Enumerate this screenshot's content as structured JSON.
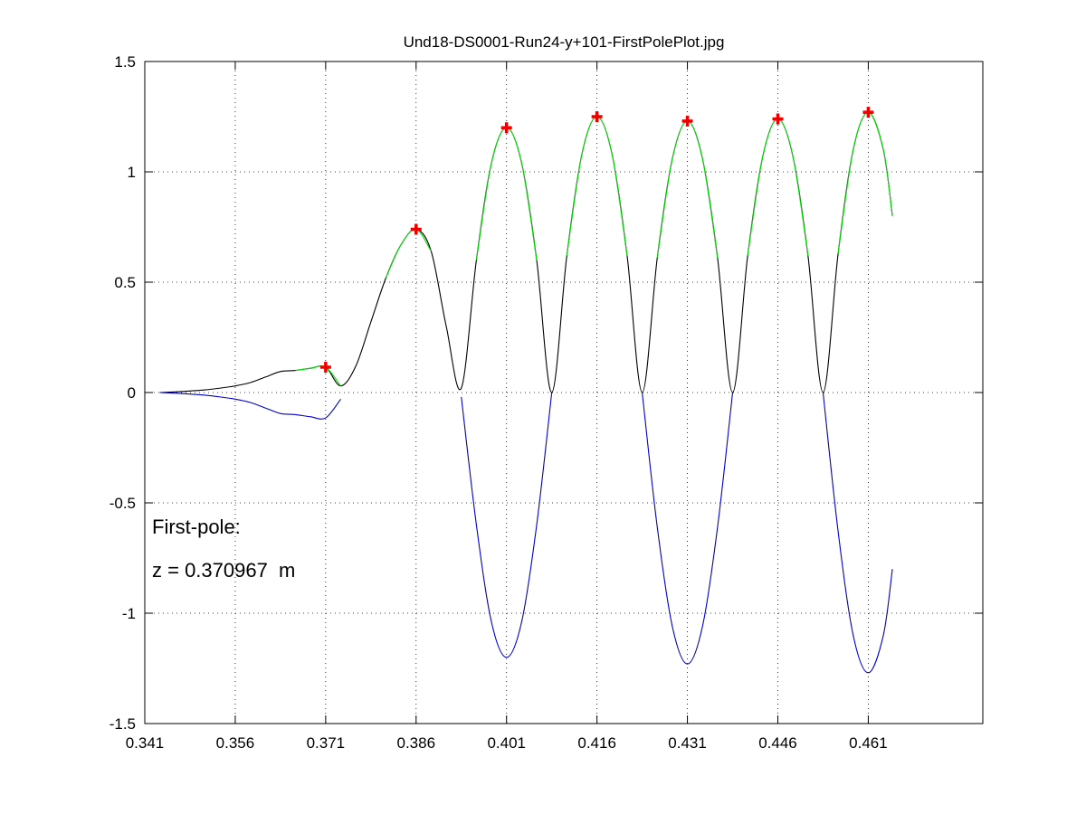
{
  "chart_data": {
    "type": "line",
    "title": "Und18-DS0001-Run24-y+101-FirstPolePlot.jpg",
    "x": [
      0.3435,
      0.346,
      0.3485,
      0.351,
      0.3535,
      0.356,
      0.3585,
      0.361,
      0.3635,
      0.366,
      0.3685,
      0.371,
      0.3735,
      0.376,
      0.3785,
      0.381,
      0.3835,
      0.386,
      0.3885,
      0.391,
      0.3935,
      0.396,
      0.3985,
      0.401,
      0.4035,
      0.406,
      0.4085,
      0.411,
      0.4135,
      0.416,
      0.4185,
      0.421,
      0.4235,
      0.426,
      0.4285,
      0.431,
      0.4335,
      0.436,
      0.4385,
      0.441,
      0.4435,
      0.446,
      0.4485,
      0.451,
      0.4535,
      0.456,
      0.4585,
      0.461,
      0.4635,
      0.465
    ],
    "series": [
      {
        "color": "#000000",
        "values": [
          0,
          0.003,
          0.007,
          0.012,
          0.02,
          0.03,
          0.045,
          0.07,
          0.095,
          0.1,
          0.11,
          0.115,
          0.03,
          0.12,
          0.32,
          0.52,
          0.67,
          0.74,
          0.64,
          0.3,
          0.02,
          0.6,
          1.04,
          1.2,
          1.04,
          0.6,
          0,
          0.62,
          1.08,
          1.25,
          1.08,
          0.62,
          0,
          0.61,
          1.06,
          1.23,
          1.06,
          0.61,
          0,
          0.62,
          1.07,
          1.24,
          1.07,
          0.62,
          0,
          0.63,
          1.1,
          1.27,
          1.1,
          0.8
        ]
      },
      {
        "color": "#00dd00",
        "values": [
          null,
          null,
          null,
          null,
          null,
          null,
          null,
          null,
          null,
          0.1,
          0.11,
          0.115,
          0.03,
          null,
          null,
          0.52,
          0.67,
          0.74,
          0.64,
          null,
          null,
          0.6,
          1.04,
          1.2,
          1.04,
          0.6,
          null,
          0.62,
          1.08,
          1.25,
          1.08,
          0.62,
          null,
          0.61,
          1.06,
          1.23,
          1.06,
          0.61,
          null,
          0.62,
          1.07,
          1.24,
          1.07,
          0.62,
          null,
          0.63,
          1.1,
          1.27,
          1.1,
          0.8
        ]
      },
      {
        "color": "#0000cc",
        "values": [
          0,
          -0.003,
          -0.007,
          -0.012,
          -0.02,
          -0.03,
          -0.045,
          -0.07,
          -0.095,
          -0.1,
          -0.11,
          -0.115,
          -0.03,
          null,
          null,
          null,
          null,
          null,
          null,
          null,
          -0.02,
          -0.6,
          -1.04,
          -1.2,
          -1.04,
          -0.6,
          0,
          null,
          null,
          null,
          null,
          null,
          0,
          -0.61,
          -1.06,
          -1.23,
          -1.06,
          -0.61,
          0,
          null,
          null,
          null,
          null,
          null,
          0,
          -0.63,
          -1.1,
          -1.27,
          -1.1,
          -0.8
        ]
      }
    ],
    "markers": {
      "color": "#ee0000",
      "x": [
        0.371,
        0.386,
        0.401,
        0.416,
        0.431,
        0.446,
        0.461
      ],
      "y": [
        0.115,
        0.74,
        1.2,
        1.25,
        1.23,
        1.24,
        1.27
      ]
    },
    "annotations": [
      "First-pole:",
      "z = 0.370967  m"
    ],
    "xlim": [
      0.341,
      0.48
    ],
    "xticks": [
      0.341,
      0.356,
      0.371,
      0.386,
      0.401,
      0.416,
      0.431,
      0.446,
      0.461
    ],
    "ylim": [
      -1.5,
      1.5
    ],
    "yticks": [
      -1.5,
      -1,
      -0.5,
      0,
      0.5,
      1,
      1.5
    ],
    "grid": true
  }
}
